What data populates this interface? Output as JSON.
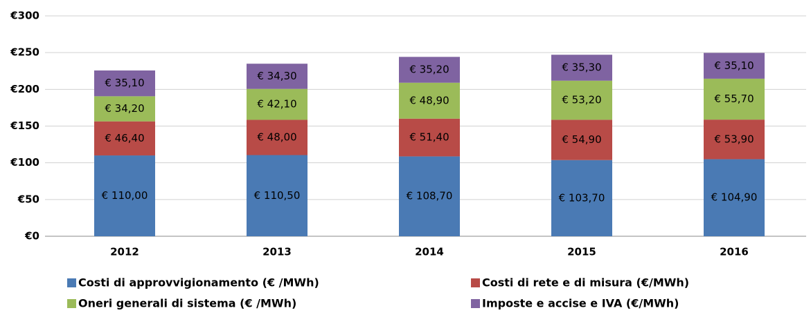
{
  "chart_data": {
    "type": "stacked_bar",
    "categories": [
      "2012",
      "2013",
      "2014",
      "2015",
      "2016"
    ],
    "series": [
      {
        "name": "Costi di approvvigionamento (€ /MWh)",
        "color": "#4a7ab4",
        "values": [
          110.0,
          110.5,
          108.7,
          103.7,
          104.9
        ],
        "value_labels": [
          "€ 110,00",
          "€ 110,50",
          "€ 108,70",
          "€ 103,70",
          "€ 104,90"
        ]
      },
      {
        "name": "Costi di rete e di misura (€/MWh)",
        "color": "#b84b47",
        "values": [
          46.4,
          48.0,
          51.4,
          54.9,
          53.9
        ],
        "value_labels": [
          "€ 46,40",
          "€ 48,00",
          "€ 51,40",
          "€ 54,90",
          "€ 53,90"
        ]
      },
      {
        "name": "Oneri generali di sistema (€ /MWh)",
        "color": "#9bbb59",
        "values": [
          34.2,
          42.1,
          48.9,
          53.2,
          55.7
        ],
        "value_labels": [
          "€ 34,20",
          "€ 42,10",
          "€ 48,90",
          "€ 53,20",
          "€ 55,70"
        ]
      },
      {
        "name": "Imposte e accise e IVA (€/MWh)",
        "color": "#7f63a1",
        "values": [
          35.1,
          34.3,
          35.2,
          35.3,
          35.1
        ],
        "value_labels": [
          "€ 35,10",
          "€ 34,30",
          "€ 35,20",
          "€ 35,30",
          "€ 35,10"
        ]
      }
    ],
    "ylim": [
      0,
      300
    ],
    "yticks": [
      {
        "value": 0,
        "label": "€0"
      },
      {
        "value": 50,
        "label": "€50"
      },
      {
        "value": 100,
        "label": "€100"
      },
      {
        "value": 150,
        "label": "€150"
      },
      {
        "value": 200,
        "label": "€200"
      },
      {
        "value": 250,
        "label": "€250"
      },
      {
        "value": 300,
        "label": "€300"
      }
    ],
    "grid": true,
    "legend": "bottom"
  }
}
